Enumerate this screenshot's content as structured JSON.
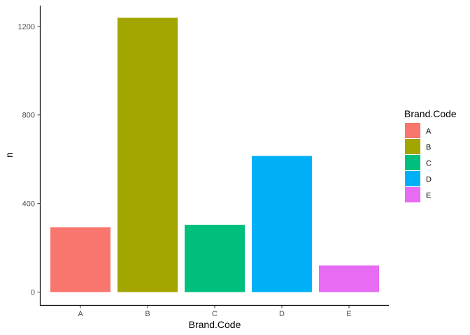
{
  "chart_data": {
    "type": "bar",
    "title": "",
    "xlabel": "Brand.Code",
    "ylabel": "n",
    "categories": [
      "A",
      "B",
      "C",
      "D",
      "E"
    ],
    "values": [
      293,
      1239,
      304,
      615,
      120
    ],
    "colors": [
      "#F8766D",
      "#A3A500",
      "#00BF7D",
      "#00B0F6",
      "#E76BF3"
    ],
    "ylim": [
      0,
      1300
    ],
    "yticks": [
      0,
      400,
      800,
      1200
    ],
    "grid": false,
    "legend": {
      "title": "Brand.Code",
      "placement": "right",
      "entries": [
        "A",
        "B",
        "C",
        "D",
        "E"
      ]
    }
  }
}
